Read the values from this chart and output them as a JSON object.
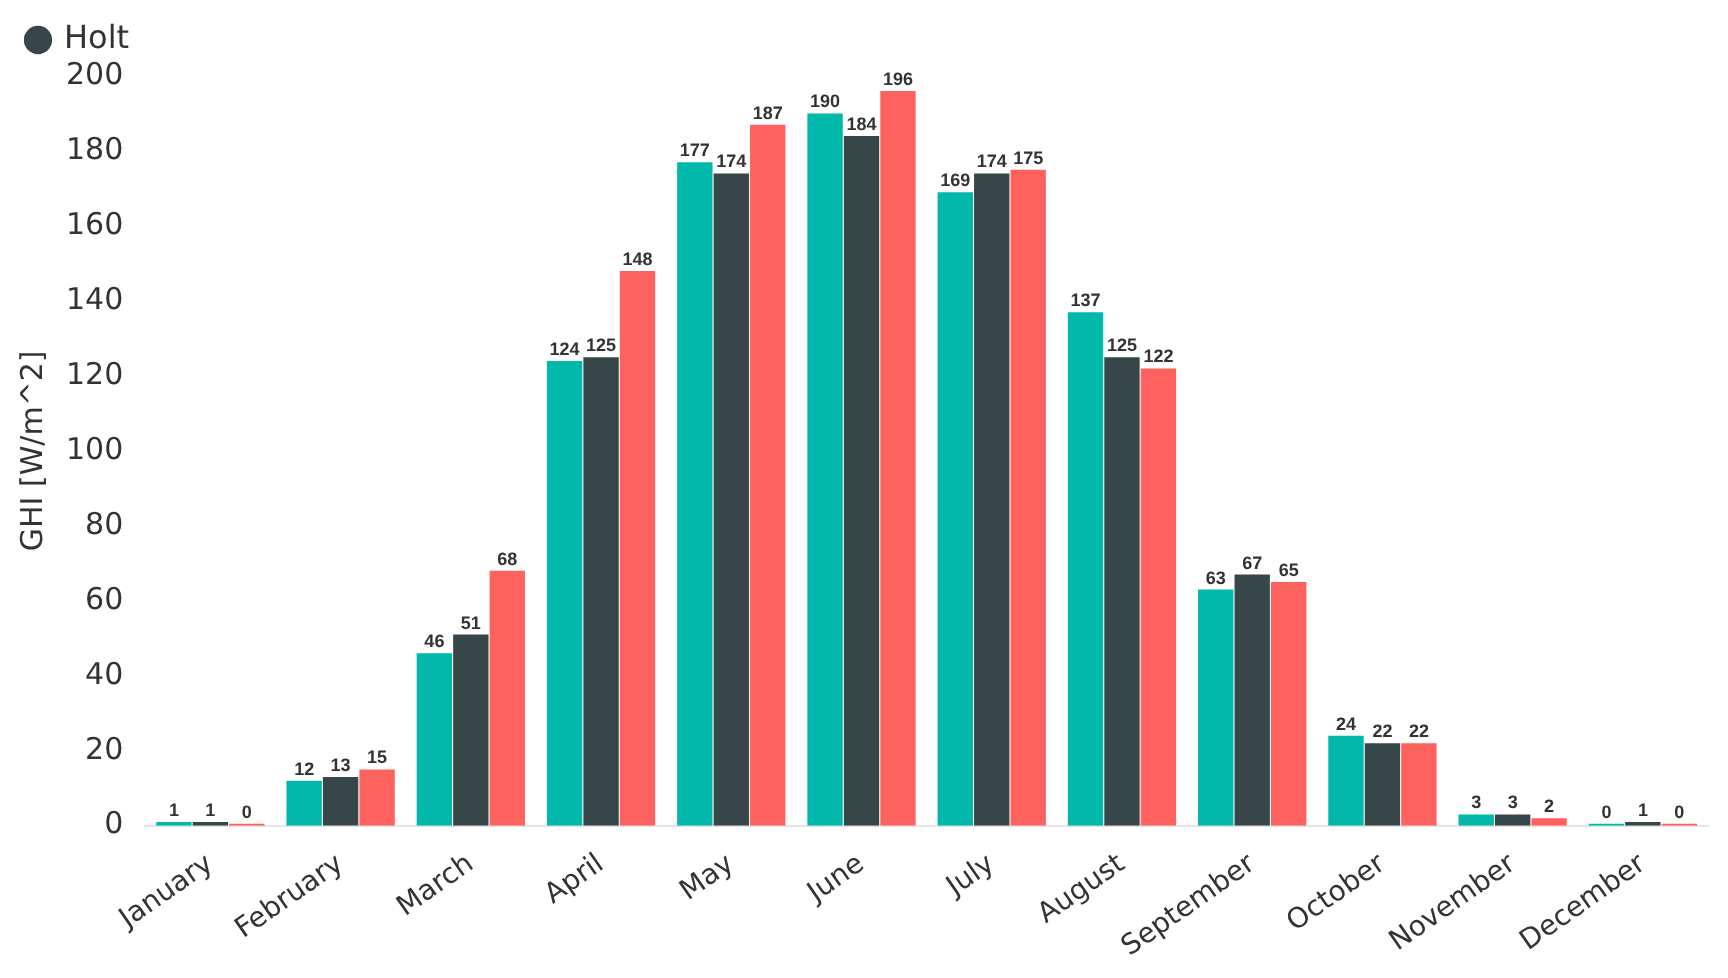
{
  "chart_data": {
    "type": "bar",
    "ylabel": "GHI [W/m^2]",
    "categories": [
      "January",
      "February",
      "March",
      "April",
      "May",
      "June",
      "July",
      "August",
      "September",
      "October",
      "November",
      "December"
    ],
    "series": [
      {
        "color": "#01b8aa",
        "values": [
          1,
          12,
          46,
          124,
          177,
          190,
          169,
          137,
          63,
          24,
          3,
          0
        ]
      },
      {
        "name": "Holt",
        "color": "#374649",
        "values": [
          1,
          13,
          51,
          125,
          174,
          184,
          174,
          125,
          67,
          22,
          3,
          1
        ]
      },
      {
        "color": "#fd625e",
        "values": [
          0,
          15,
          68,
          148,
          187,
          196,
          175,
          122,
          65,
          22,
          2,
          0
        ]
      }
    ],
    "ylim": [
      0,
      200
    ],
    "yticks": [
      0,
      20,
      40,
      60,
      80,
      100,
      120,
      140,
      160,
      180,
      200
    ],
    "grid": false,
    "legend": "top left",
    "data_labels": true
  }
}
